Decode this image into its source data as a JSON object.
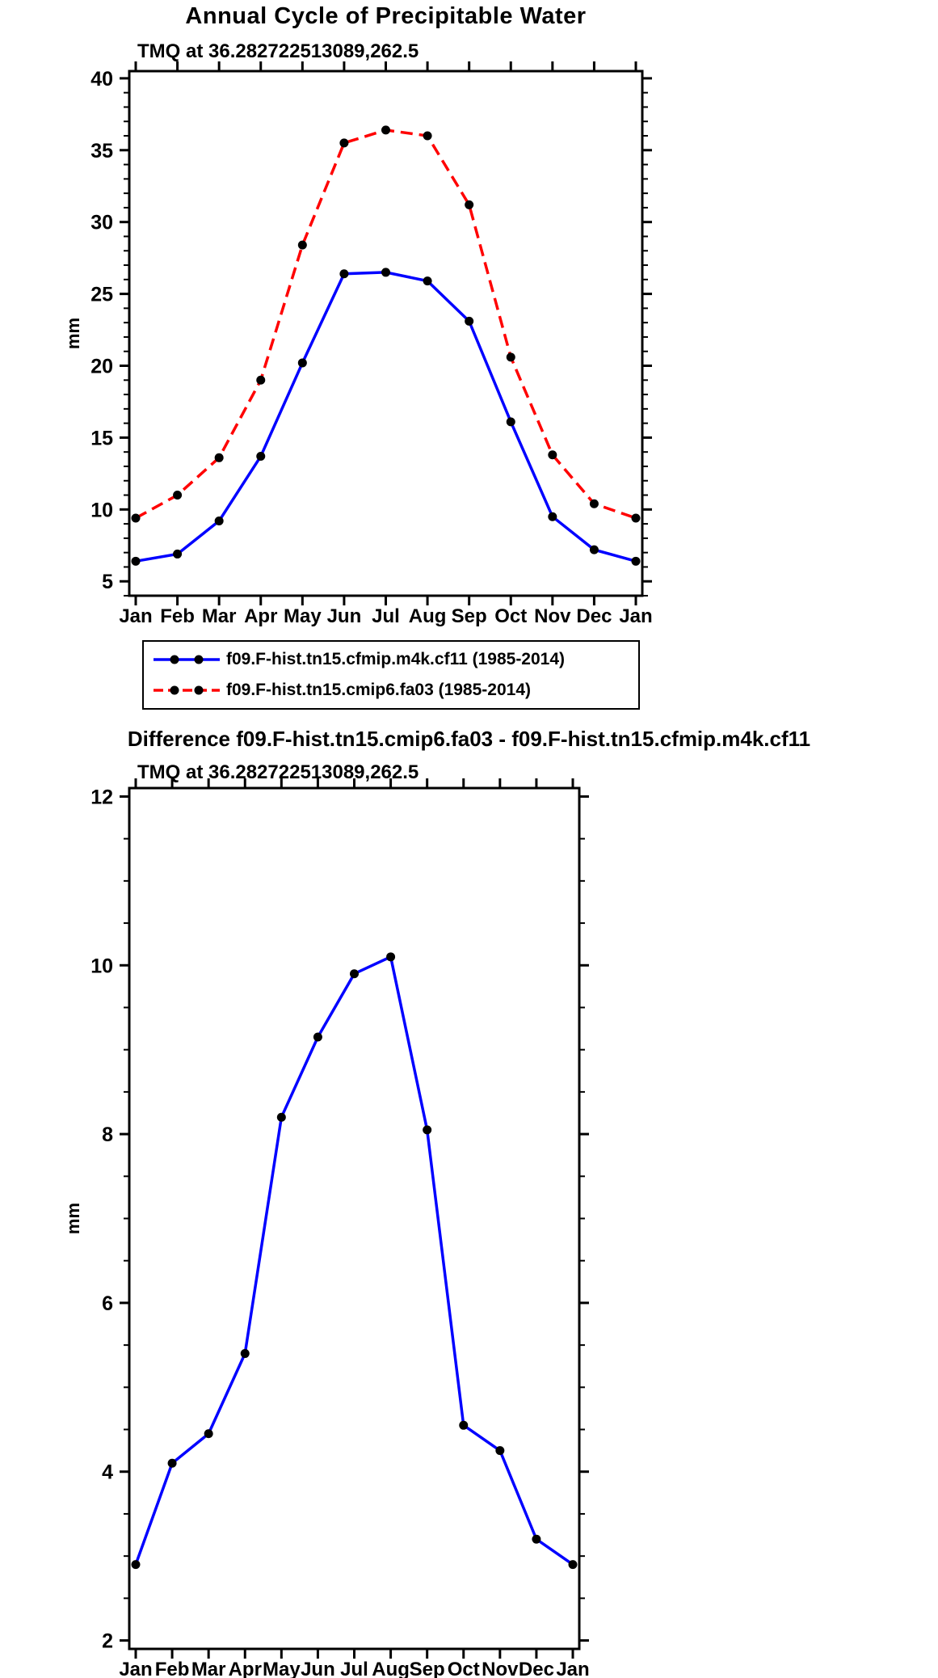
{
  "page": {
    "main_title": "Annual Cycle of Precipitable Water",
    "diff_title": "Difference f09.F-hist.tn15.cmip6.fa03 - f09.F-hist.tn15.cfmip.m4k.cf11"
  },
  "chart_data": [
    {
      "type": "line",
      "title": "TMQ at 36.282722513089,262.5",
      "xlabel": "",
      "ylabel": "mm",
      "categories": [
        "Jan",
        "Feb",
        "Mar",
        "Apr",
        "May",
        "Jun",
        "Jul",
        "Aug",
        "Sep",
        "Oct",
        "Nov",
        "Dec",
        "Jan"
      ],
      "ylim": [
        4,
        40.5
      ],
      "yticks": [
        5,
        10,
        15,
        20,
        25,
        30,
        35,
        40
      ],
      "minor_step": 1,
      "grid": false,
      "legend_position": "below",
      "axis_color": "#000000",
      "marker_color": "#000000",
      "series": [
        {
          "name": "f09.F-hist.tn15.cfmip.m4k.cf11 (1985-2014)",
          "color": "#0000ff",
          "dash": "solid",
          "values": [
            6.4,
            6.9,
            9.2,
            13.7,
            20.2,
            26.4,
            26.5,
            25.9,
            23.1,
            16.1,
            9.5,
            7.2,
            6.4
          ]
        },
        {
          "name": "f09.F-hist.tn15.cmip6.fa03 (1985-2014)",
          "color": "#ff0000",
          "dash": "dashed",
          "values": [
            9.4,
            11.0,
            13.6,
            19.0,
            28.4,
            35.5,
            36.4,
            36.0,
            31.2,
            20.6,
            13.8,
            10.4,
            9.4
          ]
        }
      ]
    },
    {
      "type": "line",
      "title": "TMQ at 36.282722513089,262.5",
      "xlabel": "",
      "ylabel": "mm",
      "categories": [
        "Jan",
        "Feb",
        "Mar",
        "Apr",
        "May",
        "Jun",
        "Jul",
        "Aug",
        "Sep",
        "Oct",
        "Nov",
        "Dec",
        "Jan"
      ],
      "ylim": [
        1.9,
        12.1
      ],
      "yticks": [
        2,
        4,
        6,
        8,
        10,
        12
      ],
      "minor_step": 0.5,
      "grid": false,
      "legend_position": "none",
      "axis_color": "#000000",
      "marker_color": "#000000",
      "series": [
        {
          "color": "#0000ff",
          "dash": "solid",
          "values": [
            2.9,
            4.1,
            4.45,
            5.4,
            8.2,
            9.15,
            9.9,
            10.1,
            8.05,
            4.55,
            4.25,
            3.2,
            2.9
          ]
        }
      ]
    }
  ]
}
